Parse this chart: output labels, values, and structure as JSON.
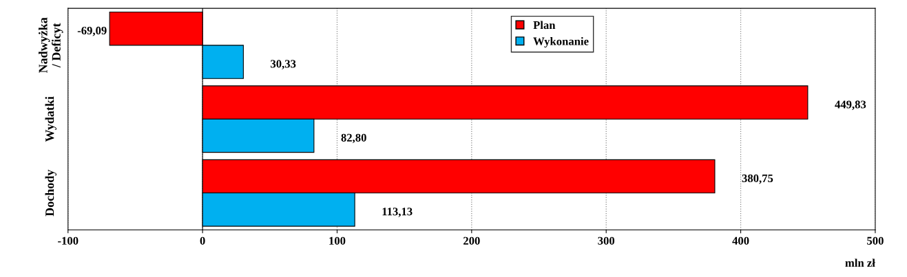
{
  "chart_data": {
    "type": "bar",
    "orientation": "horizontal",
    "categories": [
      "Nadwyżka / Deficyt",
      "Wydatki",
      "Dochody"
    ],
    "series": [
      {
        "name": "Plan",
        "color": "#ff0000",
        "values": [
          -69.09,
          449.83,
          380.75
        ],
        "value_labels": [
          "-69,09",
          "449,83",
          "380,75"
        ]
      },
      {
        "name": "Wykonanie",
        "color": "#00b0f0",
        "values": [
          30.33,
          82.8,
          113.13
        ],
        "value_labels": [
          "30,33",
          "82,80",
          "113,13"
        ]
      }
    ],
    "xlim": [
      -100,
      500
    ],
    "xticks": [
      -100,
      0,
      100,
      200,
      300,
      400,
      500
    ],
    "xlabel": "mln zł",
    "grid": "x",
    "legend": "top"
  }
}
